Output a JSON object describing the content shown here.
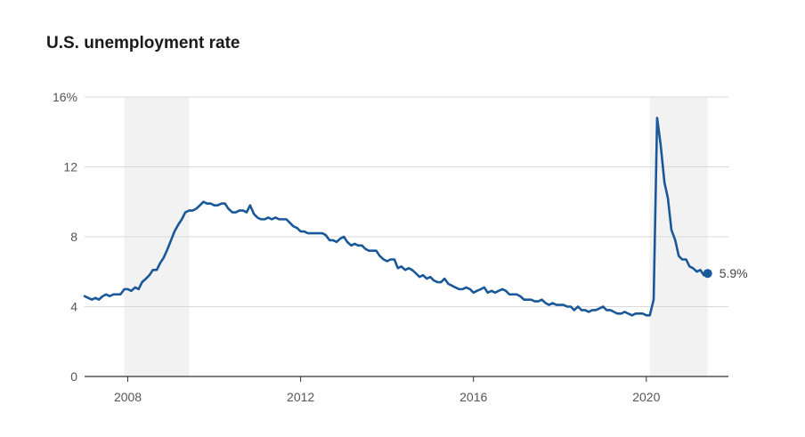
{
  "chart_data": {
    "type": "line",
    "title": "U.S. unemployment rate",
    "xlabel": "",
    "ylabel": "",
    "xlim": [
      2007.0,
      2021.9
    ],
    "ylim": [
      0,
      16
    ],
    "y_ticks": [
      0,
      4,
      8,
      12,
      16
    ],
    "y_tick_labels": [
      "0",
      "4",
      "8",
      "12",
      "16%"
    ],
    "x_ticks": [
      2008,
      2012,
      2016,
      2020
    ],
    "x_tick_labels": [
      "2008",
      "2012",
      "2016",
      "2020"
    ],
    "grid": "horizontal",
    "recession_shading": [
      [
        2007.92,
        2009.42
      ],
      [
        2020.08,
        2021.42
      ]
    ],
    "line_color": "#1a5899",
    "recession_color": "#f2f2f2",
    "end_label": "5.9%",
    "series": [
      {
        "values": [
          [
            2007.0,
            4.6
          ],
          [
            2007.08,
            4.5
          ],
          [
            2007.17,
            4.4
          ],
          [
            2007.25,
            4.5
          ],
          [
            2007.33,
            4.4
          ],
          [
            2007.42,
            4.6
          ],
          [
            2007.5,
            4.7
          ],
          [
            2007.58,
            4.6
          ],
          [
            2007.67,
            4.7
          ],
          [
            2007.75,
            4.7
          ],
          [
            2007.83,
            4.7
          ],
          [
            2007.92,
            5.0
          ],
          [
            2008.0,
            5.0
          ],
          [
            2008.08,
            4.9
          ],
          [
            2008.17,
            5.1
          ],
          [
            2008.25,
            5.0
          ],
          [
            2008.33,
            5.4
          ],
          [
            2008.42,
            5.6
          ],
          [
            2008.5,
            5.8
          ],
          [
            2008.58,
            6.1
          ],
          [
            2008.67,
            6.1
          ],
          [
            2008.75,
            6.5
          ],
          [
            2008.83,
            6.8
          ],
          [
            2008.92,
            7.3
          ],
          [
            2009.0,
            7.8
          ],
          [
            2009.08,
            8.3
          ],
          [
            2009.17,
            8.7
          ],
          [
            2009.25,
            9.0
          ],
          [
            2009.33,
            9.4
          ],
          [
            2009.42,
            9.5
          ],
          [
            2009.5,
            9.5
          ],
          [
            2009.58,
            9.6
          ],
          [
            2009.67,
            9.8
          ],
          [
            2009.75,
            10.0
          ],
          [
            2009.83,
            9.9
          ],
          [
            2009.92,
            9.9
          ],
          [
            2010.0,
            9.8
          ],
          [
            2010.08,
            9.8
          ],
          [
            2010.17,
            9.9
          ],
          [
            2010.25,
            9.9
          ],
          [
            2010.33,
            9.6
          ],
          [
            2010.42,
            9.4
          ],
          [
            2010.5,
            9.4
          ],
          [
            2010.58,
            9.5
          ],
          [
            2010.67,
            9.5
          ],
          [
            2010.75,
            9.4
          ],
          [
            2010.83,
            9.8
          ],
          [
            2010.92,
            9.3
          ],
          [
            2011.0,
            9.1
          ],
          [
            2011.08,
            9.0
          ],
          [
            2011.17,
            9.0
          ],
          [
            2011.25,
            9.1
          ],
          [
            2011.33,
            9.0
          ],
          [
            2011.42,
            9.1
          ],
          [
            2011.5,
            9.0
          ],
          [
            2011.58,
            9.0
          ],
          [
            2011.67,
            9.0
          ],
          [
            2011.75,
            8.8
          ],
          [
            2011.83,
            8.6
          ],
          [
            2011.92,
            8.5
          ],
          [
            2012.0,
            8.3
          ],
          [
            2012.08,
            8.3
          ],
          [
            2012.17,
            8.2
          ],
          [
            2012.25,
            8.2
          ],
          [
            2012.33,
            8.2
          ],
          [
            2012.42,
            8.2
          ],
          [
            2012.5,
            8.2
          ],
          [
            2012.58,
            8.1
          ],
          [
            2012.67,
            7.8
          ],
          [
            2012.75,
            7.8
          ],
          [
            2012.83,
            7.7
          ],
          [
            2012.92,
            7.9
          ],
          [
            2013.0,
            8.0
          ],
          [
            2013.08,
            7.7
          ],
          [
            2013.17,
            7.5
          ],
          [
            2013.25,
            7.6
          ],
          [
            2013.33,
            7.5
          ],
          [
            2013.42,
            7.5
          ],
          [
            2013.5,
            7.3
          ],
          [
            2013.58,
            7.2
          ],
          [
            2013.67,
            7.2
          ],
          [
            2013.75,
            7.2
          ],
          [
            2013.83,
            6.9
          ],
          [
            2013.92,
            6.7
          ],
          [
            2014.0,
            6.6
          ],
          [
            2014.08,
            6.7
          ],
          [
            2014.17,
            6.7
          ],
          [
            2014.25,
            6.2
          ],
          [
            2014.33,
            6.3
          ],
          [
            2014.42,
            6.1
          ],
          [
            2014.5,
            6.2
          ],
          [
            2014.58,
            6.1
          ],
          [
            2014.67,
            5.9
          ],
          [
            2014.75,
            5.7
          ],
          [
            2014.83,
            5.8
          ],
          [
            2014.92,
            5.6
          ],
          [
            2015.0,
            5.7
          ],
          [
            2015.08,
            5.5
          ],
          [
            2015.17,
            5.4
          ],
          [
            2015.25,
            5.4
          ],
          [
            2015.33,
            5.6
          ],
          [
            2015.42,
            5.3
          ],
          [
            2015.5,
            5.2
          ],
          [
            2015.58,
            5.1
          ],
          [
            2015.67,
            5.0
          ],
          [
            2015.75,
            5.0
          ],
          [
            2015.83,
            5.1
          ],
          [
            2015.92,
            5.0
          ],
          [
            2016.0,
            4.8
          ],
          [
            2016.08,
            4.9
          ],
          [
            2016.17,
            5.0
          ],
          [
            2016.25,
            5.1
          ],
          [
            2016.33,
            4.8
          ],
          [
            2016.42,
            4.9
          ],
          [
            2016.5,
            4.8
          ],
          [
            2016.58,
            4.9
          ],
          [
            2016.67,
            5.0
          ],
          [
            2016.75,
            4.9
          ],
          [
            2016.83,
            4.7
          ],
          [
            2016.92,
            4.7
          ],
          [
            2017.0,
            4.7
          ],
          [
            2017.08,
            4.6
          ],
          [
            2017.17,
            4.4
          ],
          [
            2017.25,
            4.4
          ],
          [
            2017.33,
            4.4
          ],
          [
            2017.42,
            4.3
          ],
          [
            2017.5,
            4.3
          ],
          [
            2017.58,
            4.4
          ],
          [
            2017.67,
            4.2
          ],
          [
            2017.75,
            4.1
          ],
          [
            2017.83,
            4.2
          ],
          [
            2017.92,
            4.1
          ],
          [
            2018.0,
            4.1
          ],
          [
            2018.08,
            4.1
          ],
          [
            2018.17,
            4.0
          ],
          [
            2018.25,
            4.0
          ],
          [
            2018.33,
            3.8
          ],
          [
            2018.42,
            4.0
          ],
          [
            2018.5,
            3.8
          ],
          [
            2018.58,
            3.8
          ],
          [
            2018.67,
            3.7
          ],
          [
            2018.75,
            3.8
          ],
          [
            2018.83,
            3.8
          ],
          [
            2018.92,
            3.9
          ],
          [
            2019.0,
            4.0
          ],
          [
            2019.08,
            3.8
          ],
          [
            2019.17,
            3.8
          ],
          [
            2019.25,
            3.7
          ],
          [
            2019.33,
            3.6
          ],
          [
            2019.42,
            3.6
          ],
          [
            2019.5,
            3.7
          ],
          [
            2019.58,
            3.6
          ],
          [
            2019.67,
            3.5
          ],
          [
            2019.75,
            3.6
          ],
          [
            2019.83,
            3.6
          ],
          [
            2019.92,
            3.6
          ],
          [
            2020.0,
            3.5
          ],
          [
            2020.08,
            3.5
          ],
          [
            2020.17,
            4.4
          ],
          [
            2020.25,
            14.8
          ],
          [
            2020.33,
            13.3
          ],
          [
            2020.42,
            11.1
          ],
          [
            2020.5,
            10.2
          ],
          [
            2020.58,
            8.4
          ],
          [
            2020.67,
            7.8
          ],
          [
            2020.75,
            6.9
          ],
          [
            2020.83,
            6.7
          ],
          [
            2020.92,
            6.7
          ],
          [
            2021.0,
            6.3
          ],
          [
            2021.08,
            6.2
          ],
          [
            2021.17,
            6.0
          ],
          [
            2021.25,
            6.1
          ],
          [
            2021.33,
            5.8
          ],
          [
            2021.42,
            5.9
          ]
        ]
      }
    ]
  }
}
